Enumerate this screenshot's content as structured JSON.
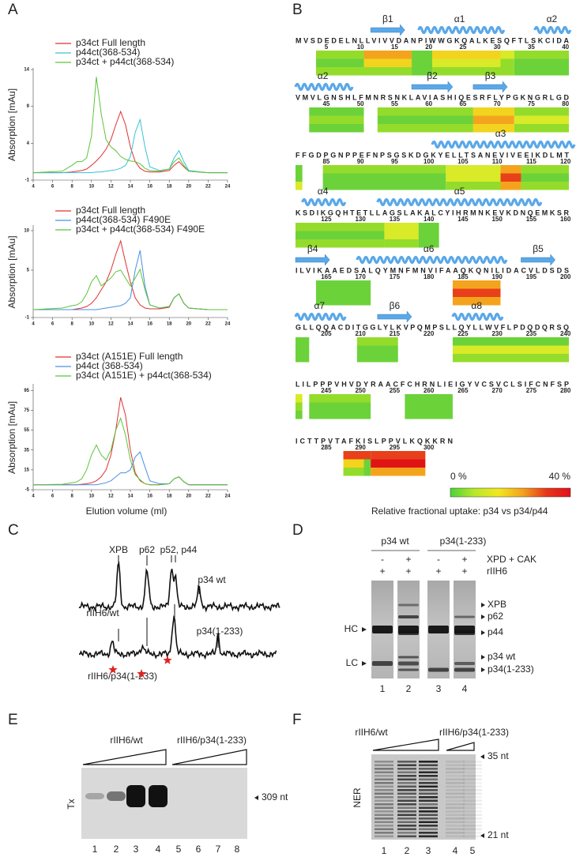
{
  "panels": {
    "A": {
      "label": "A",
      "x_label": "Elution volume (ml)",
      "charts": [
        {
          "type": "line",
          "y_label": "Absorption [mAu]",
          "x": [
            4,
            7,
            8,
            8.5,
            9,
            9.5,
            10,
            10.5,
            11,
            11.5,
            12,
            12.5,
            13,
            13.5,
            14,
            14.5,
            15,
            15.5,
            16,
            17,
            18,
            18.5,
            19,
            19.5,
            20,
            22,
            24
          ],
          "xlim": [
            4,
            24
          ],
          "xticks": [
            4,
            6,
            8,
            10,
            12,
            14,
            16,
            18,
            20,
            22,
            24
          ],
          "ylim": [
            -1,
            14
          ],
          "yticks": [
            -1,
            4,
            9,
            14
          ],
          "series": [
            {
              "name": "p34ct Full length",
              "color": "#e0312f",
              "values": [
                0,
                0,
                0.1,
                0.2,
                0.3,
                0.5,
                1,
                1.6,
                2.3,
                3.2,
                4.5,
                6.5,
                8.3,
                6.5,
                3.5,
                1.5,
                0.6,
                0.2,
                0.1,
                0.1,
                0.3,
                1,
                1.5,
                0.8,
                0.2,
                0,
                0
              ]
            },
            {
              "name": "p44ct(368-534)",
              "color": "#36c3d8",
              "values": [
                0,
                0,
                0,
                0,
                0,
                0,
                0,
                0.1,
                0.1,
                0.2,
                0.3,
                0.4,
                0.6,
                1,
                2.2,
                5.5,
                7.2,
                3.5,
                0.8,
                0.3,
                0.5,
                2,
                3,
                1.5,
                0.3,
                0,
                0
              ]
            },
            {
              "name": "p34ct + p44ct(368-534)",
              "color": "#5cc43c",
              "values": [
                0,
                0.2,
                1,
                1.5,
                1.5,
                2,
                5,
                13,
                8,
                4.5,
                3.5,
                3,
                2.2,
                1.8,
                1.6,
                1.5,
                1.2,
                0.6,
                0.3,
                0.2,
                0.5,
                1.5,
                2,
                1,
                0.2,
                0,
                0
              ]
            }
          ]
        },
        {
          "type": "line",
          "y_label": "Absorption [mAu]",
          "x": [
            4,
            7,
            8,
            8.5,
            9,
            9.5,
            10,
            10.5,
            11,
            11.5,
            12,
            12.5,
            13,
            13.5,
            14,
            14.5,
            15,
            15.5,
            16,
            17,
            18,
            18.5,
            19,
            19.5,
            20,
            22,
            24
          ],
          "xlim": [
            4,
            24
          ],
          "xticks": [
            4,
            6,
            8,
            10,
            12,
            14,
            16,
            18,
            20,
            22,
            24
          ],
          "ylim": [
            -1,
            10.5
          ],
          "yticks": [
            -1,
            5,
            10
          ],
          "series": [
            {
              "name": "p34ct Full length",
              "color": "#e0312f",
              "values": [
                0,
                0,
                0,
                0.1,
                0.2,
                0.4,
                0.8,
                1.5,
                2.5,
                3.5,
                5,
                7,
                8.7,
                6,
                3.5,
                1.5,
                0.6,
                0.2,
                0.1,
                0.1,
                0.3,
                1.5,
                2,
                0.8,
                0.2,
                0,
                0
              ]
            },
            {
              "name": "p44ct(368-534) F490E",
              "color": "#4a90e0",
              "values": [
                0,
                0,
                0,
                0,
                0,
                0,
                0,
                0,
                0.1,
                0.2,
                0.3,
                0.4,
                0.5,
                0.8,
                1.5,
                5,
                7.5,
                3,
                0.6,
                0.2,
                0.4,
                1.5,
                2,
                0.8,
                0.2,
                0,
                0
              ]
            },
            {
              "name": "p34ct + p44ct(368-534) F490E",
              "color": "#5cc43c",
              "values": [
                0,
                0.2,
                0.5,
                0.6,
                1,
                2,
                3.5,
                4.3,
                3,
                3.5,
                4,
                4.8,
                5,
                4,
                3,
                4,
                5.1,
                2.5,
                0.6,
                0.2,
                0.4,
                1.5,
                2,
                0.8,
                0.2,
                0,
                0
              ]
            }
          ]
        },
        {
          "type": "line",
          "y_label": "Absorption [mAu]",
          "x": [
            4,
            7,
            8,
            8.5,
            9,
            9.5,
            10,
            10.5,
            11,
            11.5,
            12,
            12.5,
            13,
            13.5,
            14,
            14.5,
            15,
            15.5,
            16,
            17,
            18,
            18.5,
            19,
            19.5,
            20,
            22,
            24
          ],
          "xlim": [
            4,
            24
          ],
          "xticks": [
            4,
            6,
            8,
            10,
            12,
            14,
            16,
            18,
            20,
            22,
            24
          ],
          "ylim": [
            -5,
            100
          ],
          "yticks": [
            -5,
            15,
            35,
            55,
            75,
            95
          ],
          "series": [
            {
              "name": "p34ct (A151E) Full length",
              "color": "#e0312f",
              "values": [
                0,
                0,
                0,
                0,
                0.5,
                1,
                2,
                4,
                8,
                15,
                30,
                55,
                88,
                70,
                35,
                12,
                4,
                1,
                0,
                0,
                1,
                6,
                8,
                3,
                0,
                0,
                0
              ]
            },
            {
              "name": "p44ct (368-534)",
              "color": "#4a90e0",
              "values": [
                0,
                0,
                0,
                0,
                0,
                0,
                0,
                0,
                1,
                2,
                4,
                8,
                12,
                12,
                15,
                28,
                33,
                18,
                4,
                1,
                1,
                6,
                8,
                3,
                0,
                0,
                0
              ]
            },
            {
              "name": "p34ct (A151E) + p44ct(368-534)",
              "color": "#5cc43c",
              "values": [
                0,
                0.5,
                2,
                3,
                6,
                15,
                30,
                40,
                30,
                25,
                35,
                55,
                67,
                50,
                25,
                10,
                5,
                1,
                0,
                0,
                1,
                6,
                8,
                3,
                0,
                0,
                0
              ]
            }
          ]
        }
      ]
    },
    "B": {
      "label": "B",
      "rows": [
        {
          "sequence": "MVSDEDELNLLVIVVDANPIWWGKQALKESQFTLSKCIDA",
          "numbers": [
            5,
            10,
            15,
            20,
            25,
            30,
            35,
            40
          ],
          "structures": [
            "β1",
            "α1",
            "α2"
          ]
        },
        {
          "sequence": "VMVLGNSHLFMNRSNKLAVIASHIQESRFLYPGKNGRLGD",
          "numbers": [
            45,
            50,
            55,
            60,
            65,
            70,
            75,
            80
          ],
          "structures": [
            "α2",
            "β2",
            "β3"
          ]
        },
        {
          "sequence": "FFGDPGNPPEFNPSGSKDGKYELLTSANEVIVEEIKDLMT",
          "numbers": [
            85,
            90,
            95,
            100,
            105,
            110,
            115,
            120
          ],
          "structures": [
            "α3"
          ]
        },
        {
          "sequence": "KSDIKGQHTETLLAGSLAKALCYIHRMNKEVKDNQEMKSR",
          "numbers": [
            125,
            130,
            135,
            140,
            145,
            150,
            155,
            160
          ],
          "structures": [
            "α4",
            "α5"
          ]
        },
        {
          "sequence": "ILVIKAAEDSALQYMNFMNVIFAAQKQNILIDACVLDSDS",
          "numbers": [
            165,
            170,
            175,
            180,
            185,
            190,
            195,
            200
          ],
          "structures": [
            "β4",
            "α6",
            "β5"
          ]
        },
        {
          "sequence": "GLLQQACDITGGLYLKVPQMPSLLQYLLWVFLPDQDQRSQ",
          "numbers": [
            205,
            210,
            215,
            220,
            225,
            230,
            235,
            240
          ],
          "structures": [
            "α7",
            "β6",
            "α8"
          ]
        },
        {
          "sequence": "LILPPPVHVDYRAACFCHRNLIEIGYVCSVCLSIFCNFSP",
          "numbers": [
            245,
            250,
            255,
            260,
            265,
            270,
            275,
            280
          ],
          "structures": []
        },
        {
          "sequence": "ICTTPVTAFKISLPPVLKQKKRN",
          "numbers": [
            285,
            290,
            295,
            300
          ],
          "structures": []
        }
      ],
      "colorbar": {
        "min_label": "0 %",
        "max_label": "40 %"
      },
      "caption": "Relative fractional uptake: p34 vs p34/p44"
    },
    "C": {
      "label": "C",
      "top_trace": {
        "name": "rIIH6/wt",
        "peak_labels": [
          "XPB",
          "p62",
          "p52, p44",
          "p34 wt"
        ]
      },
      "bottom_trace": {
        "name": "rIIH6/p34(1-233)",
        "peak_labels": [
          "p34(1-233)"
        ]
      }
    },
    "D": {
      "label": "D",
      "groups": [
        "p34 wt",
        "p34(1-233)"
      ],
      "conditions": [
        {
          "name": "XPD + CAK",
          "signs": [
            "-",
            "+",
            "-",
            "+"
          ]
        },
        {
          "name": "rIIH6",
          "signs": [
            "+",
            "+",
            "+",
            "+"
          ]
        }
      ],
      "left_labels": [
        "HC",
        "LC"
      ],
      "right_labels": [
        "XPB",
        "p62",
        "p44",
        "p34 wt",
        "p34(1-233)"
      ],
      "lanes": [
        1,
        2,
        3,
        4
      ]
    },
    "E": {
      "label": "E",
      "groups": [
        "rIIH6/wt",
        "rIIH6/p34(1-233)"
      ],
      "row_label": "Tx",
      "band_label": "309 nt",
      "lanes": [
        1,
        2,
        3,
        4,
        5,
        6,
        7,
        8
      ]
    },
    "F": {
      "label": "F",
      "groups": [
        "rIIH6/wt",
        "rIIH6/p34(1-233)"
      ],
      "row_label": "NER",
      "band_labels": [
        "35 nt",
        "21 nt"
      ],
      "lanes": [
        1,
        2,
        3,
        4,
        5
      ]
    }
  }
}
